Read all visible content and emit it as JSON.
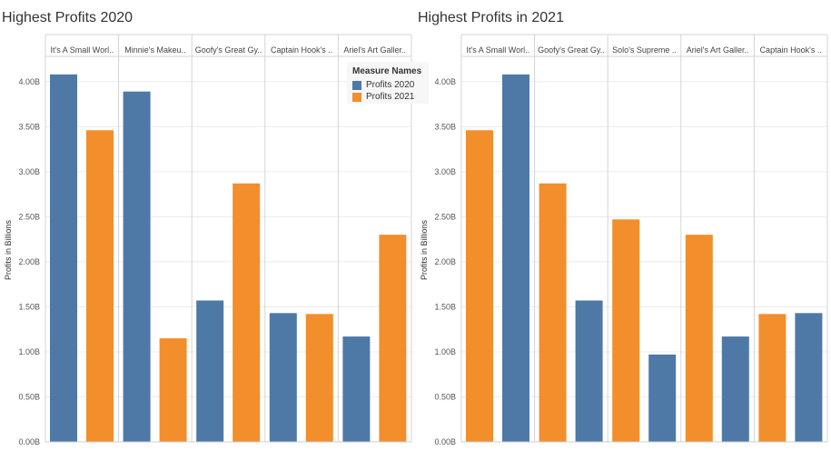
{
  "chart_data": [
    {
      "type": "bar",
      "title": "Highest Profits 2020",
      "ylabel": "Profits in Billions",
      "ylim": [
        0,
        4.25
      ],
      "yticks": [
        "0.00B",
        "0.50B",
        "1.00B",
        "1.50B",
        "2.00B",
        "2.50B",
        "3.00B",
        "3.50B",
        "4.00B"
      ],
      "categories": [
        "It's A Small Worl..",
        "Minnie's Makeu..",
        "Goofy's Great Gy..",
        "Captain Hook's ..",
        "Ariel's Art Galler.."
      ],
      "series": [
        {
          "name": "Profits 2020",
          "values": [
            4.08,
            3.89,
            1.57,
            1.43,
            1.17
          ]
        },
        {
          "name": "Profits 2021",
          "values": [
            3.46,
            1.15,
            2.87,
            1.42,
            2.3
          ]
        }
      ],
      "grid": true
    },
    {
      "type": "bar",
      "title": "Highest Profits in 2021",
      "ylabel": "Profits in Billions",
      "ylim": [
        0,
        4.25
      ],
      "yticks": [
        "0.00B",
        "0.50B",
        "1.00B",
        "1.50B",
        "2.00B",
        "2.50B",
        "3.00B",
        "3.50B",
        "4.00B"
      ],
      "categories": [
        "It's A Small Worl..",
        "Goofy's Great Gy..",
        "Solo's Supreme ..",
        "Ariel's Art Galler..",
        "Captain Hook's .."
      ],
      "series": [
        {
          "name": "Profits 2021",
          "values": [
            3.46,
            2.87,
            2.47,
            2.3,
            1.42
          ]
        },
        {
          "name": "Profits 2020",
          "values": [
            4.08,
            1.57,
            0.97,
            1.17,
            1.43
          ]
        }
      ],
      "grid": true
    }
  ],
  "legend": {
    "title": "Measure Names",
    "items": [
      {
        "label": "Profits 2020",
        "color": "#4e79a7"
      },
      {
        "label": "Profits 2021",
        "color": "#f28e2b"
      }
    ]
  },
  "colors": {
    "Profits 2020": "#4e79a7",
    "Profits 2021": "#f28e2b"
  }
}
